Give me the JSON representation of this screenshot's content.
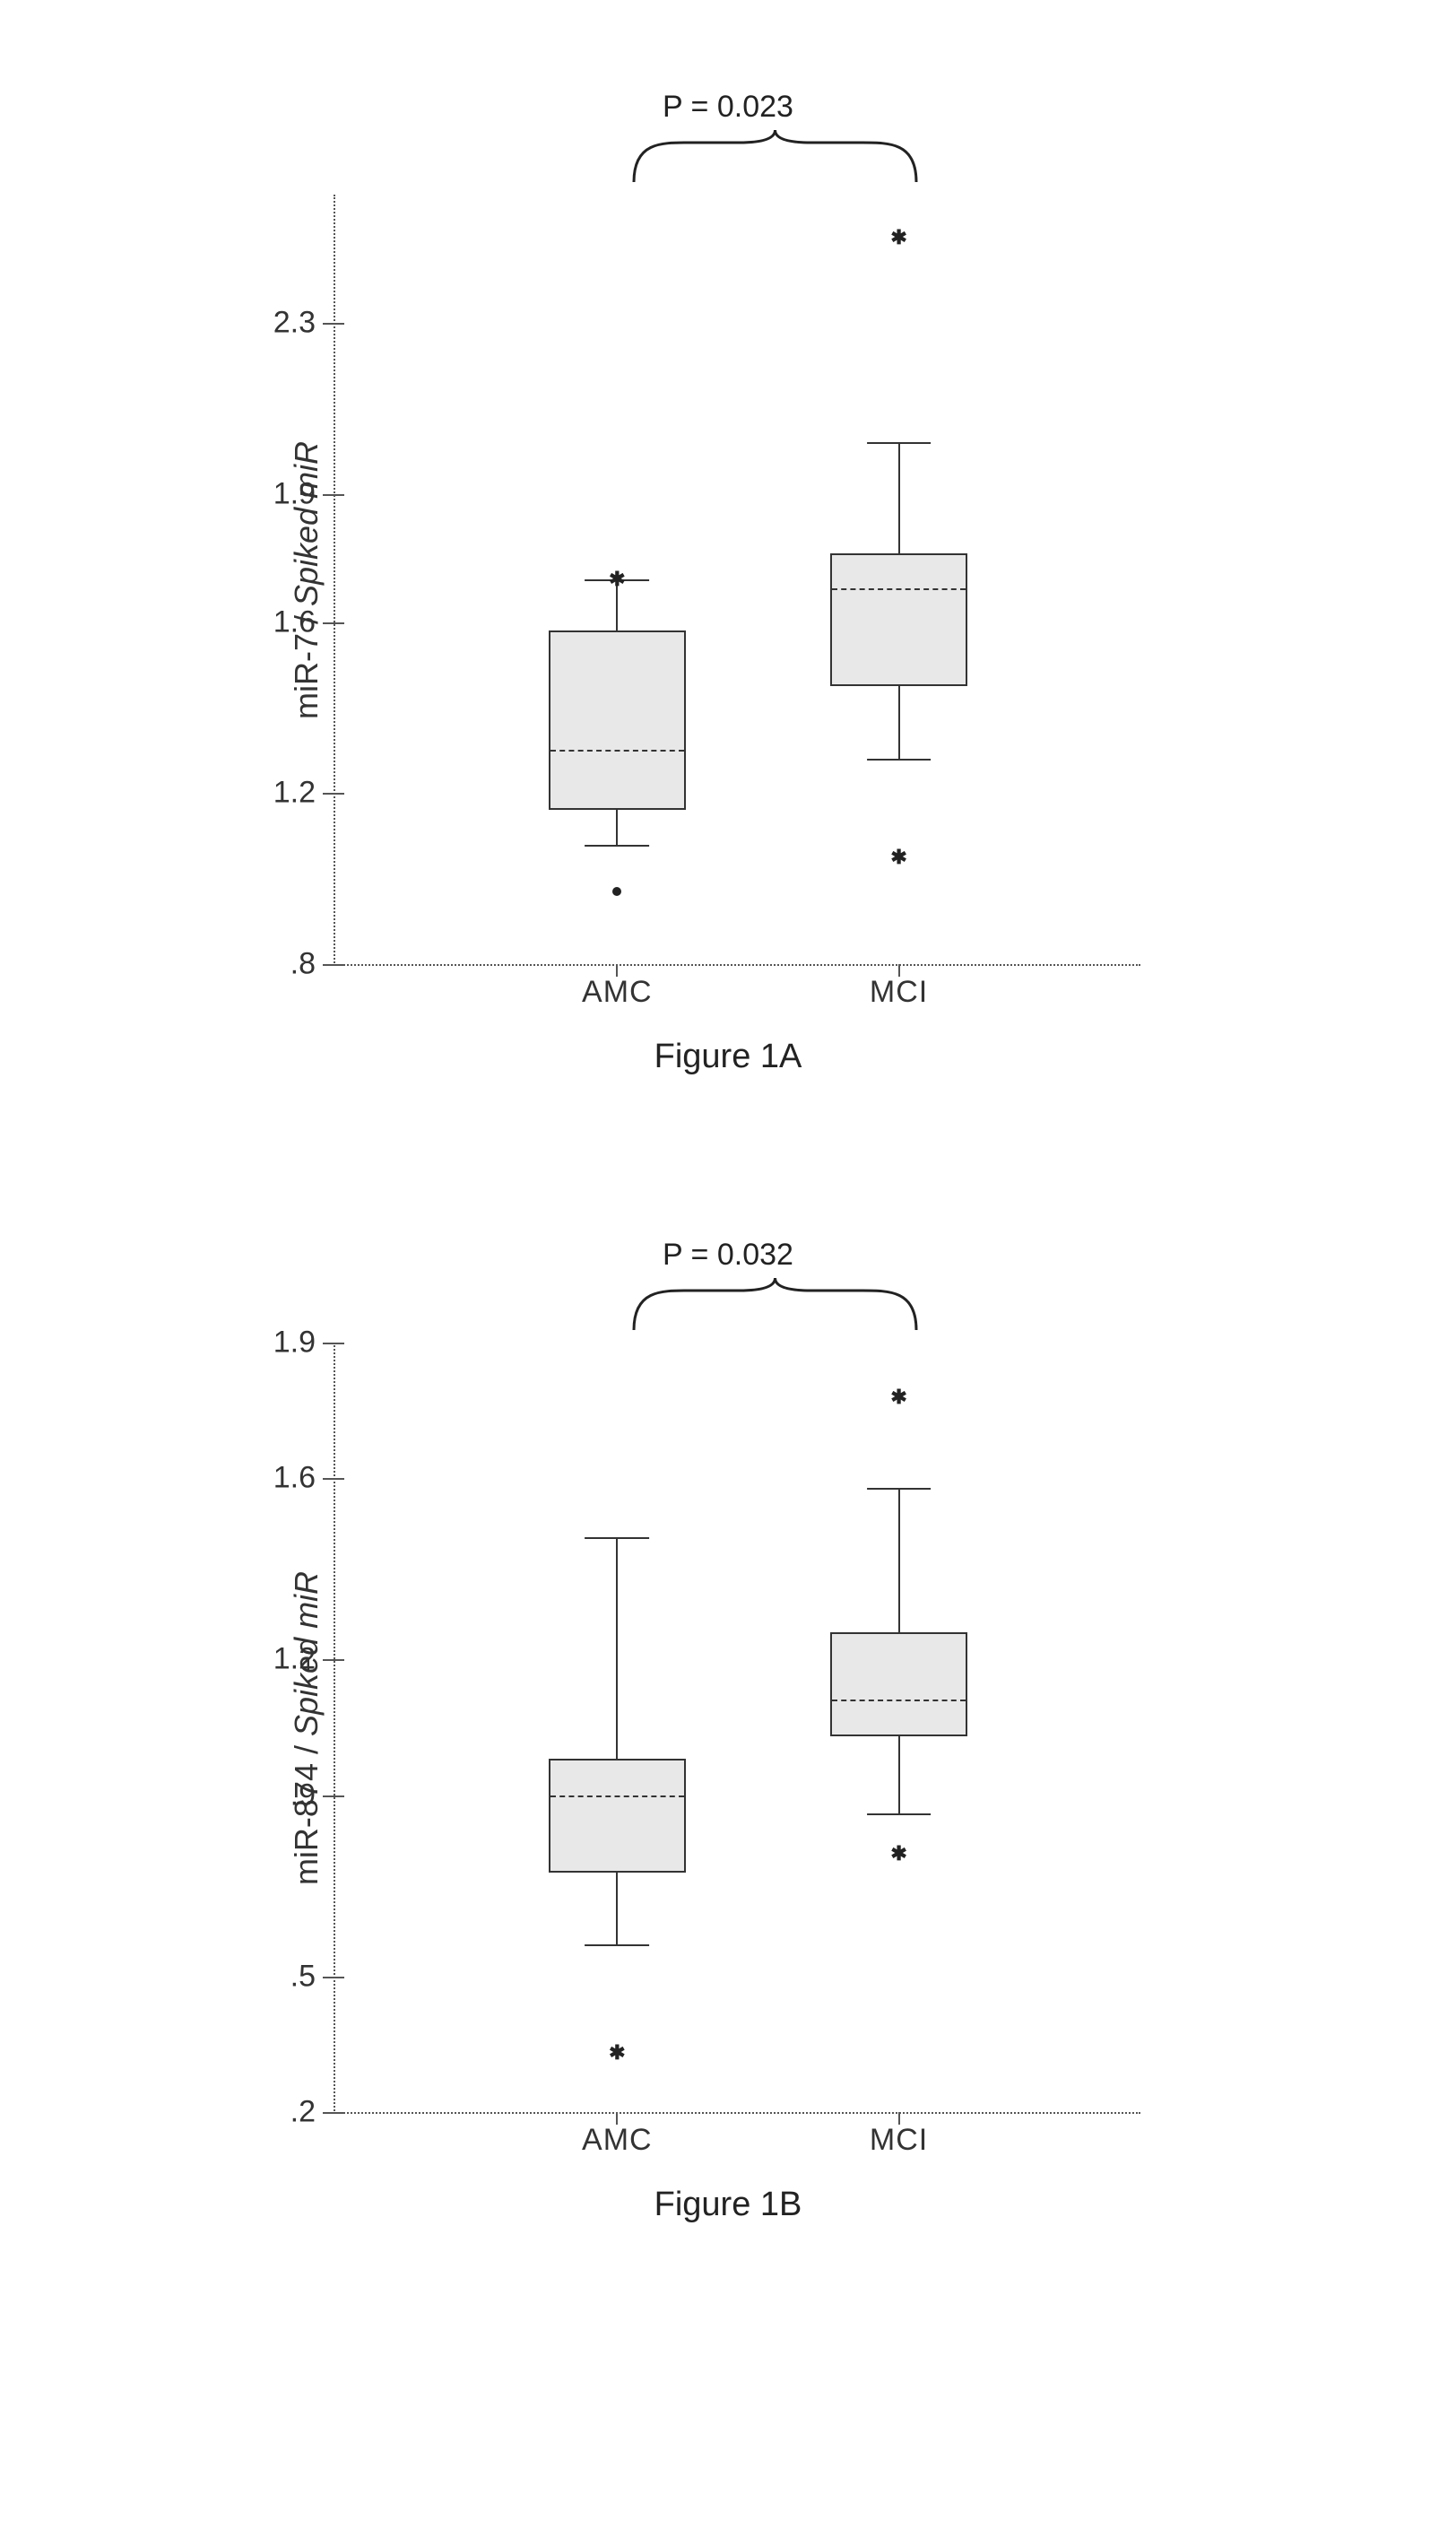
{
  "figures": [
    {
      "id": "fig1a",
      "caption": "Figure 1A",
      "pvalue": "P = 0.023",
      "ylabel_plain": "miR-7 / ",
      "ylabel_italic": "Spiked miR",
      "type": "boxplot",
      "y": {
        "min": 0.8,
        "max": 2.6,
        "ticks": [
          0.8,
          1.2,
          1.6,
          1.9,
          2.3
        ],
        "tick_labels": [
          ".8",
          "1.2",
          "1.6",
          "1.9",
          "2.3"
        ]
      },
      "categories": [
        "AMC",
        "MCI"
      ],
      "x_positions_pct": [
        35,
        70
      ],
      "box_width_pct": 17,
      "whisker_cap_width_pct": 8,
      "box_fill": "#e8e8e8",
      "box_border": "#333333",
      "background": "#ffffff",
      "font_size_axis": 34,
      "font_size_caption": 38,
      "groups": [
        {
          "q1": 1.16,
          "median": 1.3,
          "q3": 1.58,
          "whisker_low": 1.08,
          "whisker_high": 1.7,
          "outliers_star": [
            1.7
          ],
          "outliers_dot": [
            0.97
          ]
        },
        {
          "q1": 1.45,
          "median": 1.68,
          "q3": 1.76,
          "whisker_low": 1.28,
          "whisker_high": 2.02,
          "outliers_star": [
            2.5,
            1.05
          ],
          "outliers_dot": []
        }
      ]
    },
    {
      "id": "fig1b",
      "caption": "Figure 1B",
      "pvalue": "P = 0.032",
      "ylabel_plain": "miR-874 / ",
      "ylabel_italic": "Spiked miR",
      "type": "boxplot",
      "y": {
        "min": 0.2,
        "max": 1.9,
        "ticks": [
          0.2,
          0.5,
          0.9,
          1.2,
          1.6,
          1.9
        ],
        "tick_labels": [
          ".2",
          ".5",
          ".9",
          "1.2",
          "1.6",
          "1.9"
        ]
      },
      "categories": [
        "AMC",
        "MCI"
      ],
      "x_positions_pct": [
        35,
        70
      ],
      "box_width_pct": 17,
      "whisker_cap_width_pct": 8,
      "box_fill": "#e8e8e8",
      "box_border": "#333333",
      "background": "#ffffff",
      "font_size_axis": 34,
      "font_size_caption": 38,
      "groups": [
        {
          "q1": 0.73,
          "median": 0.9,
          "q3": 0.98,
          "whisker_low": 0.57,
          "whisker_high": 1.47,
          "outliers_star": [
            0.33
          ],
          "outliers_dot": []
        },
        {
          "q1": 1.03,
          "median": 1.11,
          "q3": 1.26,
          "whisker_low": 0.86,
          "whisker_high": 1.58,
          "outliers_star": [
            1.78,
            0.77
          ],
          "outliers_dot": []
        }
      ]
    }
  ]
}
